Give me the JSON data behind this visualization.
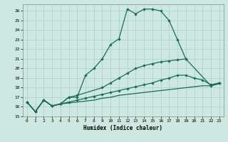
{
  "xlabel": "Humidex (Indice chaleur)",
  "bg_color": "#cce8e0",
  "grid_color": "#aacfc8",
  "line_color": "#1a6b5a",
  "xlim": [
    -0.5,
    23.5
  ],
  "ylim": [
    15,
    26.7
  ],
  "yticks": [
    15,
    16,
    17,
    18,
    19,
    20,
    21,
    22,
    23,
    24,
    25,
    26
  ],
  "xticks": [
    0,
    1,
    2,
    3,
    4,
    5,
    6,
    7,
    8,
    9,
    10,
    11,
    12,
    13,
    14,
    15,
    16,
    17,
    18,
    19,
    20,
    21,
    22,
    23
  ],
  "curve1_x": [
    0,
    1,
    2,
    3,
    4,
    5,
    6,
    7,
    8,
    9,
    10,
    11,
    12,
    13,
    14,
    15,
    16,
    17,
    18,
    19
  ],
  "curve1_y": [
    16.5,
    15.5,
    16.7,
    16.1,
    16.3,
    17.0,
    17.0,
    19.3,
    20.0,
    21.0,
    22.5,
    23.1,
    26.2,
    25.7,
    26.2,
    26.2,
    26.0,
    25.0,
    23.0,
    21.0
  ],
  "curve2_x": [
    0,
    1,
    2,
    3,
    4,
    5,
    6,
    9,
    10,
    11,
    12,
    13,
    14,
    15,
    16,
    17,
    18,
    19,
    22,
    23
  ],
  "curve2_y": [
    16.5,
    15.5,
    16.7,
    16.1,
    16.3,
    17.0,
    17.2,
    18.0,
    18.5,
    19.0,
    19.5,
    20.0,
    20.3,
    20.5,
    20.7,
    20.8,
    20.9,
    21.0,
    18.2,
    18.5
  ],
  "curve3_x": [
    0,
    1,
    2,
    3,
    4,
    5,
    6,
    7,
    8,
    9,
    10,
    11,
    12,
    13,
    14,
    15,
    16,
    17,
    18,
    19,
    20,
    21,
    22,
    23
  ],
  "curve3_y": [
    16.5,
    15.5,
    16.7,
    16.1,
    16.3,
    16.5,
    16.7,
    16.9,
    17.1,
    17.3,
    17.5,
    17.7,
    17.9,
    18.1,
    18.3,
    18.5,
    18.8,
    19.0,
    19.3,
    19.3,
    19.0,
    18.8,
    18.3,
    18.5
  ],
  "curve4_x": [
    0,
    1,
    2,
    3,
    4,
    5,
    6,
    7,
    8,
    9,
    10,
    11,
    12,
    13,
    14,
    15,
    16,
    17,
    18,
    19,
    20,
    21,
    22,
    23
  ],
  "curve4_y": [
    16.5,
    15.5,
    16.7,
    16.1,
    16.3,
    16.4,
    16.5,
    16.6,
    16.7,
    16.9,
    17.0,
    17.2,
    17.3,
    17.4,
    17.5,
    17.6,
    17.7,
    17.8,
    17.9,
    18.0,
    18.1,
    18.2,
    18.2,
    18.4
  ]
}
